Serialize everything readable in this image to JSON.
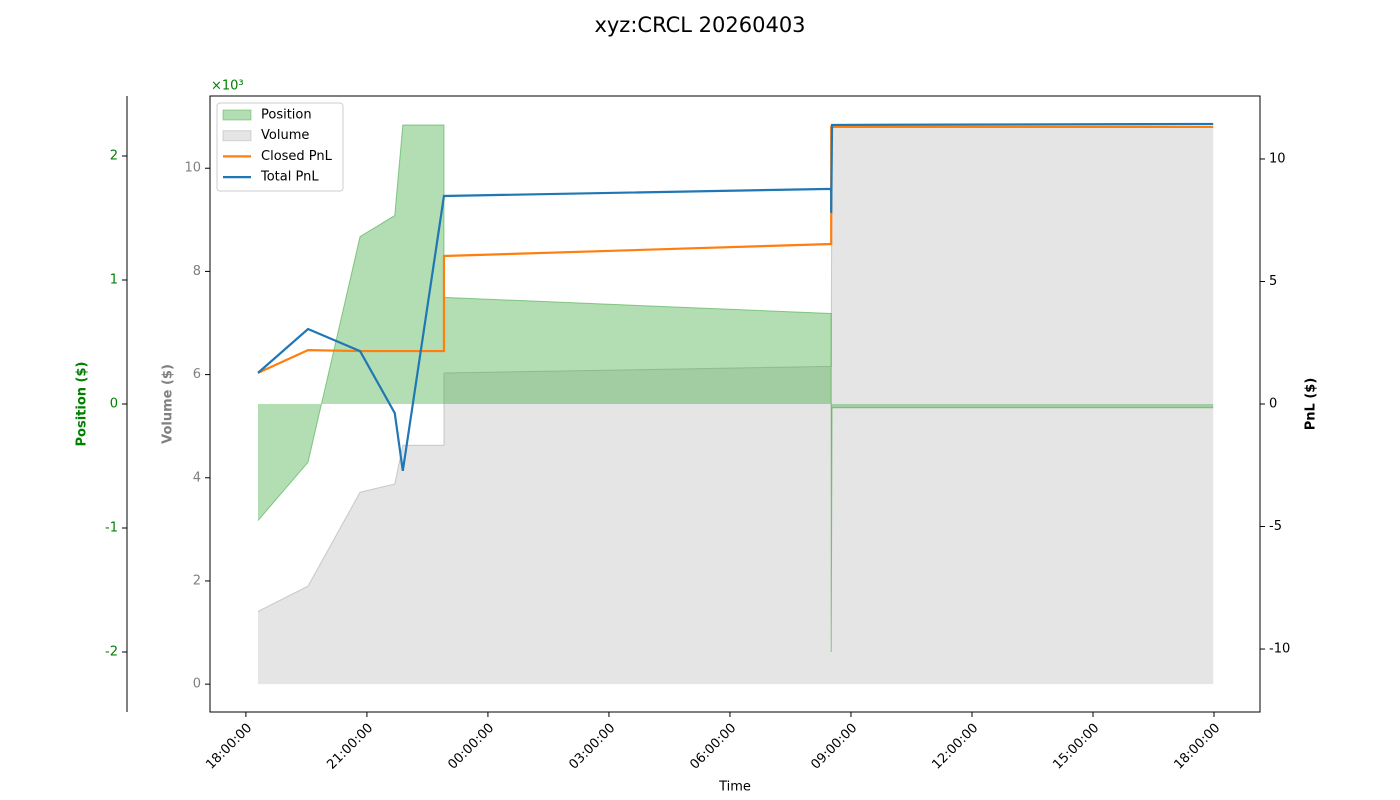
{
  "chart_data": {
    "type": "multi-axis-area-line",
    "title": "xyz:CRCL 20260403",
    "xlabel": "Time",
    "ylabel": "Position ($)",
    "y3label": "Volume ($)",
    "y2label": "PnL ($)",
    "y_offset_label": "×10³",
    "xlim": [
      -0.89,
      25.14
    ],
    "xticks": [
      {
        "value": 0,
        "label": "18:00:00"
      },
      {
        "value": 3,
        "label": "21:00:00"
      },
      {
        "value": 6,
        "label": "00:00:00"
      },
      {
        "value": 9,
        "label": "03:00:00"
      },
      {
        "value": 12,
        "label": "06:00:00"
      },
      {
        "value": 15,
        "label": "09:00:00"
      },
      {
        "value": 18,
        "label": "12:00:00"
      },
      {
        "value": 21,
        "label": "15:00:00"
      },
      {
        "value": 24,
        "label": "18:00:00"
      }
    ],
    "ylim": [
      -2.484,
      2.484
    ],
    "yticks": [
      -2,
      -1,
      0,
      1,
      2
    ],
    "y3lim": [
      -0.54,
      11.4
    ],
    "y3ticks": [
      0,
      2,
      4,
      6,
      8,
      10
    ],
    "y2lim": [
      -12.57,
      12.57
    ],
    "y2ticks": [
      -10,
      -5,
      0,
      5,
      10
    ],
    "legend": "upper left",
    "series": [
      {
        "name": "Position",
        "kind": "area",
        "axis": "y",
        "color": "#2ca02c",
        "x": [
          0.3,
          1.54,
          2.83,
          3.69,
          3.89,
          4.91,
          4.91,
          14.51,
          14.51,
          14.53,
          23.98
        ],
        "values": [
          -0.94,
          -0.47,
          1.35,
          1.52,
          2.25,
          2.25,
          0.86,
          0.73,
          -2.0,
          -0.03,
          -0.03
        ]
      },
      {
        "name": "Volume",
        "kind": "area",
        "axis": "y3",
        "color": "#a0a0a0",
        "x": [
          0.3,
          1.54,
          2.83,
          3.69,
          3.89,
          4.91,
          4.91,
          14.51,
          14.53,
          23.98
        ],
        "values": [
          1.41,
          1.9,
          3.72,
          3.88,
          4.63,
          4.63,
          6.03,
          6.16,
          10.79,
          10.79
        ]
      },
      {
        "name": "Closed PnL",
        "kind": "line",
        "axis": "y2",
        "color": "#ff7f0e",
        "x": [
          0.3,
          1.54,
          2.83,
          4.91,
          4.91,
          14.51,
          14.51,
          23.98
        ],
        "values": [
          1.27,
          2.2,
          2.16,
          2.16,
          6.04,
          6.53,
          11.31,
          11.31
        ]
      },
      {
        "name": "Total PnL",
        "kind": "line",
        "axis": "y2",
        "color": "#1f77b4",
        "x": [
          0.3,
          1.54,
          2.83,
          3.69,
          3.89,
          4.91,
          14.51,
          14.51,
          14.53,
          23.98
        ],
        "values": [
          1.27,
          3.06,
          2.16,
          -0.37,
          -2.73,
          8.49,
          8.78,
          7.8,
          11.39,
          11.43
        ]
      }
    ]
  }
}
